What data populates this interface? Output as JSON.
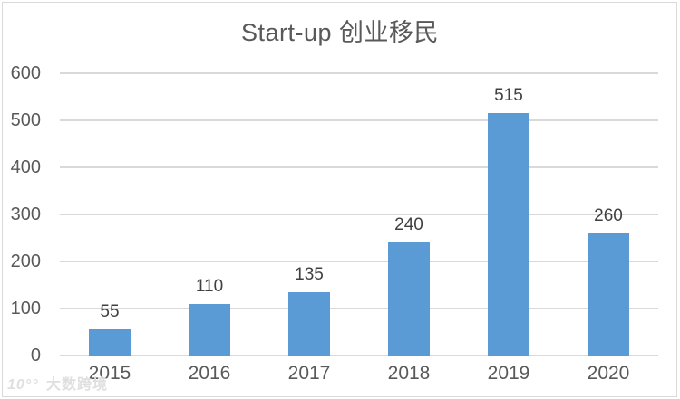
{
  "chart_data": {
    "type": "bar",
    "title": "Start-up 创业移民",
    "categories": [
      "2015",
      "2016",
      "2017",
      "2018",
      "2019",
      "2020"
    ],
    "values": [
      55,
      110,
      135,
      240,
      515,
      260
    ],
    "xlabel": "",
    "ylabel": "",
    "ylim": [
      0,
      600
    ],
    "ytick_step": 100,
    "yticks": [
      0,
      100,
      200,
      300,
      400,
      500,
      600
    ],
    "grid": true,
    "legend": false,
    "data_labels": true,
    "bar_color": "#5B9BD5",
    "gridline_color": "#D9D9D9",
    "label_color": "#404040",
    "axis_text_color": "#595959",
    "title_color": "#595959"
  },
  "watermark": {
    "logo": "10°°",
    "text": "大数跨境"
  }
}
